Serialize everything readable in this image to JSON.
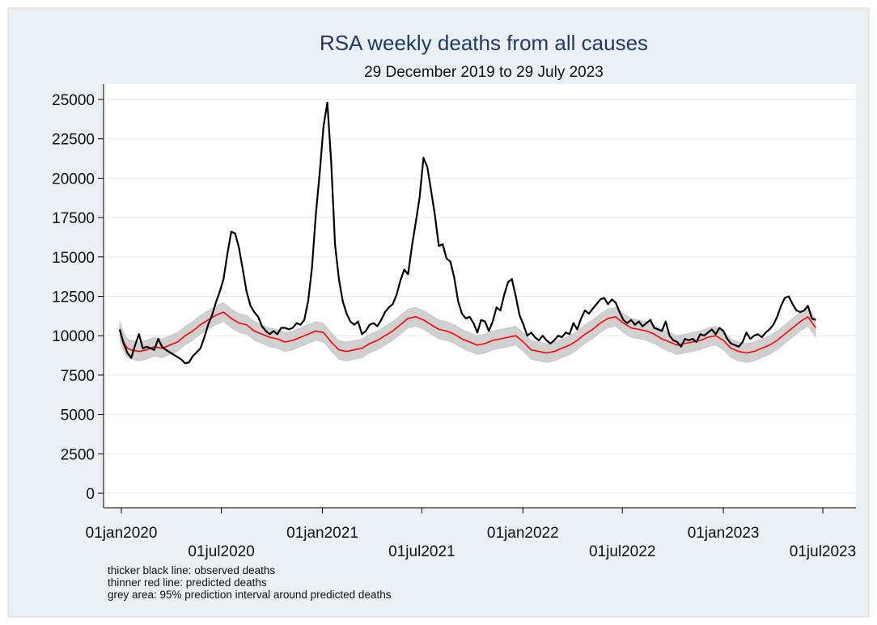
{
  "chart_data": {
    "type": "line",
    "title": "RSA weekly deaths from all causes",
    "subtitle": "29 December 2019 to 29 July 2023",
    "xlabel": "",
    "ylabel": "",
    "ylim": [
      0,
      25000
    ],
    "yticks": [
      0,
      2500,
      5000,
      7500,
      10000,
      12500,
      15000,
      17500,
      20000,
      22500,
      25000
    ],
    "xticks": [
      "01jan2020",
      "01jul2020",
      "01jan2021",
      "01jul2021",
      "01jan2022",
      "01jul2022",
      "01jan2023",
      "01jul2023"
    ],
    "xlim": [
      "2019-12-29",
      "2023-07-29"
    ],
    "grid": "horizontal",
    "series": [
      {
        "name": "observed deaths",
        "color": "#000000",
        "points": [
          [
            "2019-12-29",
            10400
          ],
          [
            "2020-01-05",
            9500
          ],
          [
            "2020-01-12",
            8900
          ],
          [
            "2020-01-19",
            8600
          ],
          [
            "2020-01-26",
            9400
          ],
          [
            "2020-02-02",
            10100
          ],
          [
            "2020-02-09",
            9200
          ],
          [
            "2020-02-16",
            9300
          ],
          [
            "2020-03-01",
            9100
          ],
          [
            "2020-03-08",
            9800
          ],
          [
            "2020-03-15",
            9300
          ],
          [
            "2020-03-22",
            9100
          ],
          [
            "2020-04-05",
            8800
          ],
          [
            "2020-04-19",
            8500
          ],
          [
            "2020-04-26",
            8250
          ],
          [
            "2020-05-03",
            8300
          ],
          [
            "2020-05-10",
            8700
          ],
          [
            "2020-05-24",
            9200
          ],
          [
            "2020-05-31",
            9900
          ],
          [
            "2020-06-07",
            10700
          ],
          [
            "2020-06-14",
            11300
          ],
          [
            "2020-06-21",
            12100
          ],
          [
            "2020-06-28",
            12800
          ],
          [
            "2020-07-05",
            13600
          ],
          [
            "2020-07-12",
            15200
          ],
          [
            "2020-07-19",
            16600
          ],
          [
            "2020-07-26",
            16500
          ],
          [
            "2020-08-02",
            15600
          ],
          [
            "2020-08-09",
            14200
          ],
          [
            "2020-08-16",
            12800
          ],
          [
            "2020-08-23",
            11900
          ],
          [
            "2020-08-30",
            11500
          ],
          [
            "2020-09-06",
            11200
          ],
          [
            "2020-09-13",
            10600
          ],
          [
            "2020-09-20",
            10300
          ],
          [
            "2020-09-27",
            10100
          ],
          [
            "2020-10-04",
            10300
          ],
          [
            "2020-10-11",
            10100
          ],
          [
            "2020-10-18",
            10500
          ],
          [
            "2020-10-25",
            10500
          ],
          [
            "2020-11-01",
            10400
          ],
          [
            "2020-11-08",
            10500
          ],
          [
            "2020-11-15",
            10800
          ],
          [
            "2020-11-22",
            10700
          ],
          [
            "2020-11-29",
            11000
          ],
          [
            "2020-12-06",
            12200
          ],
          [
            "2020-12-13",
            14300
          ],
          [
            "2020-12-20",
            17700
          ],
          [
            "2020-12-27",
            20300
          ],
          [
            "2021-01-03",
            23300
          ],
          [
            "2021-01-10",
            24800
          ],
          [
            "2021-01-17",
            21000
          ],
          [
            "2021-01-24",
            15800
          ],
          [
            "2021-01-31",
            13600
          ],
          [
            "2021-02-07",
            12200
          ],
          [
            "2021-02-14",
            11400
          ],
          [
            "2021-02-21",
            10900
          ],
          [
            "2021-02-28",
            10700
          ],
          [
            "2021-03-07",
            10900
          ],
          [
            "2021-03-14",
            10100
          ],
          [
            "2021-03-21",
            10300
          ],
          [
            "2021-03-28",
            10700
          ],
          [
            "2021-04-04",
            10800
          ],
          [
            "2021-04-11",
            10600
          ],
          [
            "2021-04-18",
            11000
          ],
          [
            "2021-04-25",
            11500
          ],
          [
            "2021-05-02",
            11800
          ],
          [
            "2021-05-09",
            12000
          ],
          [
            "2021-05-16",
            12600
          ],
          [
            "2021-05-23",
            13500
          ],
          [
            "2021-05-30",
            14200
          ],
          [
            "2021-06-06",
            13900
          ],
          [
            "2021-06-13",
            15700
          ],
          [
            "2021-06-20",
            17200
          ],
          [
            "2021-06-27",
            18800
          ],
          [
            "2021-07-04",
            21300
          ],
          [
            "2021-07-11",
            20700
          ],
          [
            "2021-07-18",
            19200
          ],
          [
            "2021-07-25",
            17600
          ],
          [
            "2021-08-01",
            15700
          ],
          [
            "2021-08-08",
            15800
          ],
          [
            "2021-08-15",
            14900
          ],
          [
            "2021-08-22",
            14700
          ],
          [
            "2021-08-29",
            13700
          ],
          [
            "2021-09-05",
            12200
          ],
          [
            "2021-09-12",
            11400
          ],
          [
            "2021-09-19",
            11100
          ],
          [
            "2021-09-26",
            11200
          ],
          [
            "2021-10-03",
            10800
          ],
          [
            "2021-10-10",
            10200
          ],
          [
            "2021-10-17",
            11000
          ],
          [
            "2021-10-24",
            10900
          ],
          [
            "2021-10-31",
            10300
          ],
          [
            "2021-11-07",
            10900
          ],
          [
            "2021-11-14",
            11800
          ],
          [
            "2021-11-21",
            11600
          ],
          [
            "2021-11-28",
            12600
          ],
          [
            "2021-12-05",
            13400
          ],
          [
            "2021-12-12",
            13600
          ],
          [
            "2021-12-19",
            12500
          ],
          [
            "2021-12-26",
            11300
          ],
          [
            "2022-01-02",
            10700
          ],
          [
            "2022-01-09",
            10000
          ],
          [
            "2022-01-16",
            10200
          ],
          [
            "2022-01-23",
            9900
          ],
          [
            "2022-01-30",
            9700
          ],
          [
            "2022-02-06",
            10000
          ],
          [
            "2022-02-13",
            9700
          ],
          [
            "2022-02-20",
            9500
          ],
          [
            "2022-02-27",
            9700
          ],
          [
            "2022-03-06",
            10000
          ],
          [
            "2022-03-13",
            9900
          ],
          [
            "2022-03-20",
            10200
          ],
          [
            "2022-03-27",
            10100
          ],
          [
            "2022-04-03",
            10800
          ],
          [
            "2022-04-10",
            10400
          ],
          [
            "2022-04-17",
            11100
          ],
          [
            "2022-04-24",
            11600
          ],
          [
            "2022-05-01",
            11400
          ],
          [
            "2022-05-08",
            11700
          ],
          [
            "2022-05-15",
            12000
          ],
          [
            "2022-05-22",
            12300
          ],
          [
            "2022-05-29",
            12400
          ],
          [
            "2022-06-05",
            12000
          ],
          [
            "2022-06-12",
            12300
          ],
          [
            "2022-06-19",
            12100
          ],
          [
            "2022-06-26",
            11500
          ],
          [
            "2022-07-03",
            11000
          ],
          [
            "2022-07-10",
            10800
          ],
          [
            "2022-07-17",
            11000
          ],
          [
            "2022-07-24",
            10700
          ],
          [
            "2022-07-31",
            10900
          ],
          [
            "2022-08-07",
            10600
          ],
          [
            "2022-08-14",
            10800
          ],
          [
            "2022-08-21",
            11000
          ],
          [
            "2022-08-28",
            10500
          ],
          [
            "2022-09-04",
            10400
          ],
          [
            "2022-09-11",
            10300
          ],
          [
            "2022-09-18",
            10900
          ],
          [
            "2022-09-25",
            10000
          ],
          [
            "2022-10-02",
            9700
          ],
          [
            "2022-10-09",
            9600
          ],
          [
            "2022-10-16",
            9300
          ],
          [
            "2022-10-23",
            9800
          ],
          [
            "2022-10-30",
            9700
          ],
          [
            "2022-11-06",
            9800
          ],
          [
            "2022-11-13",
            9600
          ],
          [
            "2022-11-20",
            10100
          ],
          [
            "2022-11-27",
            10000
          ],
          [
            "2022-12-04",
            10200
          ],
          [
            "2022-12-11",
            10400
          ],
          [
            "2022-12-18",
            10100
          ],
          [
            "2022-12-25",
            10500
          ],
          [
            "2023-01-01",
            10300
          ],
          [
            "2023-01-08",
            9800
          ],
          [
            "2023-01-15",
            9500
          ],
          [
            "2023-01-22",
            9400
          ],
          [
            "2023-01-29",
            9300
          ],
          [
            "2023-02-05",
            9600
          ],
          [
            "2023-02-12",
            10200
          ],
          [
            "2023-02-19",
            9800
          ],
          [
            "2023-02-26",
            10000
          ],
          [
            "2023-03-05",
            10100
          ],
          [
            "2023-03-12",
            9900
          ],
          [
            "2023-03-19",
            10200
          ],
          [
            "2023-03-26",
            10400
          ],
          [
            "2023-04-02",
            10700
          ],
          [
            "2023-04-09",
            11200
          ],
          [
            "2023-04-16",
            11900
          ],
          [
            "2023-04-23",
            12400
          ],
          [
            "2023-04-30",
            12500
          ],
          [
            "2023-05-07",
            12000
          ],
          [
            "2023-05-14",
            11600
          ],
          [
            "2023-05-21",
            11500
          ],
          [
            "2023-05-28",
            11600
          ],
          [
            "2023-06-04",
            11900
          ],
          [
            "2023-06-11",
            11100
          ],
          [
            "2023-06-18",
            11000
          ]
        ]
      },
      {
        "name": "predicted deaths",
        "color": "#ff0000",
        "points": [
          [
            "2019-12-29",
            10300
          ],
          [
            "2020-01-05",
            9600
          ],
          [
            "2020-01-12",
            9200
          ],
          [
            "2020-01-19",
            9100
          ],
          [
            "2020-02-02",
            9000
          ],
          [
            "2020-02-16",
            9100
          ],
          [
            "2020-03-01",
            9300
          ],
          [
            "2020-03-15",
            9200
          ],
          [
            "2020-03-29",
            9400
          ],
          [
            "2020-04-12",
            9600
          ],
          [
            "2020-04-26",
            10000
          ],
          [
            "2020-05-10",
            10300
          ],
          [
            "2020-05-24",
            10700
          ],
          [
            "2020-06-07",
            11000
          ],
          [
            "2020-06-21",
            11300
          ],
          [
            "2020-07-05",
            11500
          ],
          [
            "2020-07-19",
            11100
          ],
          [
            "2020-08-02",
            10800
          ],
          [
            "2020-08-16",
            10700
          ],
          [
            "2020-08-30",
            10300
          ],
          [
            "2020-09-13",
            10100
          ],
          [
            "2020-09-27",
            9900
          ],
          [
            "2020-10-11",
            9800
          ],
          [
            "2020-10-25",
            9600
          ],
          [
            "2020-11-08",
            9700
          ],
          [
            "2020-11-22",
            9900
          ],
          [
            "2020-12-06",
            10100
          ],
          [
            "2020-12-20",
            10300
          ],
          [
            "2021-01-03",
            10200
          ],
          [
            "2021-01-17",
            9600
          ],
          [
            "2021-01-31",
            9100
          ],
          [
            "2021-02-14",
            9000
          ],
          [
            "2021-02-28",
            9100
          ],
          [
            "2021-03-14",
            9200
          ],
          [
            "2021-03-28",
            9500
          ],
          [
            "2021-04-11",
            9700
          ],
          [
            "2021-04-25",
            10000
          ],
          [
            "2021-05-09",
            10300
          ],
          [
            "2021-05-23",
            10700
          ],
          [
            "2021-06-06",
            11100
          ],
          [
            "2021-06-20",
            11200
          ],
          [
            "2021-07-04",
            11000
          ],
          [
            "2021-07-18",
            10700
          ],
          [
            "2021-08-01",
            10400
          ],
          [
            "2021-08-15",
            10300
          ],
          [
            "2021-08-29",
            10100
          ],
          [
            "2021-09-12",
            9800
          ],
          [
            "2021-09-26",
            9600
          ],
          [
            "2021-10-10",
            9400
          ],
          [
            "2021-10-24",
            9500
          ],
          [
            "2021-11-07",
            9700
          ],
          [
            "2021-11-21",
            9800
          ],
          [
            "2021-12-05",
            9900
          ],
          [
            "2021-12-19",
            10000
          ],
          [
            "2022-01-02",
            9600
          ],
          [
            "2022-01-16",
            9100
          ],
          [
            "2022-01-30",
            9000
          ],
          [
            "2022-02-13",
            8900
          ],
          [
            "2022-02-27",
            9000
          ],
          [
            "2022-03-13",
            9200
          ],
          [
            "2022-03-27",
            9400
          ],
          [
            "2022-04-10",
            9700
          ],
          [
            "2022-04-24",
            10100
          ],
          [
            "2022-05-08",
            10400
          ],
          [
            "2022-05-22",
            10800
          ],
          [
            "2022-06-05",
            11100
          ],
          [
            "2022-06-19",
            11200
          ],
          [
            "2022-07-03",
            10800
          ],
          [
            "2022-07-17",
            10500
          ],
          [
            "2022-07-31",
            10400
          ],
          [
            "2022-08-14",
            10300
          ],
          [
            "2022-08-28",
            10100
          ],
          [
            "2022-09-11",
            9800
          ],
          [
            "2022-09-25",
            9600
          ],
          [
            "2022-10-09",
            9400
          ],
          [
            "2022-10-23",
            9500
          ],
          [
            "2022-11-06",
            9600
          ],
          [
            "2022-11-20",
            9700
          ],
          [
            "2022-12-04",
            9900
          ],
          [
            "2022-12-18",
            10000
          ],
          [
            "2023-01-01",
            9700
          ],
          [
            "2023-01-15",
            9200
          ],
          [
            "2023-01-29",
            9000
          ],
          [
            "2023-02-12",
            8900
          ],
          [
            "2023-02-26",
            9000
          ],
          [
            "2023-03-12",
            9200
          ],
          [
            "2023-03-26",
            9400
          ],
          [
            "2023-04-09",
            9700
          ],
          [
            "2023-04-23",
            10100
          ],
          [
            "2023-05-07",
            10500
          ],
          [
            "2023-05-21",
            10900
          ],
          [
            "2023-06-04",
            11200
          ],
          [
            "2023-06-18",
            10500
          ]
        ]
      }
    ],
    "band": {
      "name": "95% prediction interval around predicted deaths",
      "color": "#c8c8c8",
      "halfwidth": 600
    },
    "notes": [
      "thicker black line: observed deaths",
      "thinner red line: predicted deaths",
      "grey area: 95% prediction interval around predicted deaths"
    ]
  }
}
